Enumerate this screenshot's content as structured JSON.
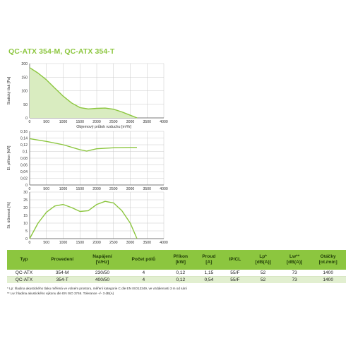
{
  "title": "QC-ATX 354-M, QC-ATX 354-T",
  "colors": {
    "accent": "#8cc63f",
    "fill": "#d9ecc0",
    "row_alt": "#e2efd0"
  },
  "chart_data": [
    {
      "type": "area",
      "title": "",
      "xlabel": "Objemový průtok vzduchu [m³/h]",
      "ylabel": "Statický tlak [Pa]",
      "xlim": [
        0,
        4000
      ],
      "ylim": [
        0,
        200
      ],
      "xticks": [
        "0",
        "500",
        "1000",
        "1500",
        "2000",
        "2500",
        "3000",
        "3500",
        "4000"
      ],
      "yticks": [
        "0",
        "50",
        "100",
        "150",
        "200"
      ],
      "grid": true,
      "x": [
        0,
        250,
        500,
        750,
        1000,
        1250,
        1500,
        1750,
        2000,
        2250,
        2500,
        2750,
        3000,
        3200
      ],
      "y": [
        185,
        165,
        140,
        110,
        80,
        55,
        38,
        33,
        35,
        36,
        32,
        22,
        10,
        0
      ]
    },
    {
      "type": "line",
      "title": "",
      "xlabel": "",
      "ylabel": "El. příkon [kW]",
      "xlim": [
        0,
        4000
      ],
      "ylim": [
        0,
        0.16
      ],
      "xticks": [
        "0",
        "500",
        "1000",
        "1500",
        "2000",
        "2500",
        "3000",
        "3500",
        "4000"
      ],
      "yticks": [
        "0",
        "0,02",
        "0,04",
        "0,06",
        "0,08",
        "0,1",
        "0,12",
        "0,14",
        "0,16"
      ],
      "grid": true,
      "x": [
        0,
        500,
        1000,
        1500,
        1700,
        2000,
        2500,
        3000,
        3200
      ],
      "y": [
        0.138,
        0.13,
        0.12,
        0.105,
        0.101,
        0.108,
        0.111,
        0.112,
        0.112
      ]
    },
    {
      "type": "line",
      "title": "",
      "xlabel": "",
      "ylabel": "St. účinnost [%]",
      "xlim": [
        0,
        4000
      ],
      "ylim": [
        0,
        30
      ],
      "xticks": [
        "0",
        "500",
        "1000",
        "1500",
        "2000",
        "2500",
        "3000",
        "3500",
        "4000"
      ],
      "yticks": [
        "0",
        "5",
        "10",
        "15",
        "20",
        "25",
        "30"
      ],
      "grid": true,
      "x": [
        0,
        250,
        500,
        750,
        1000,
        1250,
        1500,
        1750,
        2000,
        2250,
        2500,
        2750,
        3000,
        3200
      ],
      "y": [
        0,
        10,
        17,
        21,
        22,
        20,
        17.5,
        18,
        22,
        24,
        23,
        18,
        10,
        0
      ]
    }
  ],
  "table": {
    "headers": [
      "Typ",
      "Provedení",
      "Napájení\n[V/Hz]",
      "Počet pólů",
      "Příkon\n[kW]",
      "Proud\n[A]",
      "IP/CL",
      "Lp*\n[dB(A)]",
      "Lw**\n[dB(A)]",
      "Otáčky\n[ot./min]"
    ],
    "rows": [
      [
        "QC-ATX",
        "354-M",
        "230/50",
        "4",
        "0,12",
        "1,15",
        "55/F",
        "52",
        "73",
        "1400"
      ],
      [
        "QC-ATX",
        "354-T",
        "400/50",
        "4",
        "0,12",
        "0,54",
        "55/F",
        "52",
        "73",
        "1400"
      ]
    ]
  },
  "notes": [
    "* Lp: hladina akustického tlaku měřená ve volném prostoru, měření kategorie C dle EN ISO13349, ve vzdálenosti 3 m od sání",
    "** Lw: hladina akustického výkonu dle EN ISO 3746. Tolerance +/- 3 dB(A)"
  ]
}
